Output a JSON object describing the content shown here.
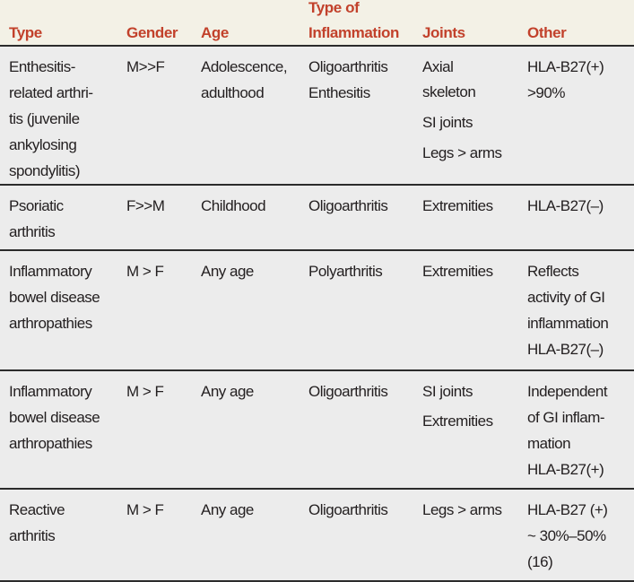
{
  "header": {
    "type": "Type",
    "gender": "Gender",
    "age": "Age",
    "inflammation_line1": "Type of",
    "inflammation_line2": "Inflammation",
    "joints": "Joints",
    "other": "Other"
  },
  "rows": [
    {
      "type": [
        "Enthesitis-",
        "related arthri-",
        "tis (juvenile",
        "ankylosing",
        "spondylitis)"
      ],
      "gender": [
        "M>>F"
      ],
      "age": [
        "Adolescence,",
        "adulthood"
      ],
      "inflammation": [
        "Oligoarthritis",
        "Enthesitis"
      ],
      "joints": [
        "Axial",
        "skeleton",
        "SI joints",
        "Legs > arms"
      ],
      "other": [
        "HLA-B27(+)",
        ">90%"
      ]
    },
    {
      "type": [
        "Psoriatic",
        "arthritis"
      ],
      "gender": [
        "F>>M"
      ],
      "age": [
        "Childhood"
      ],
      "inflammation": [
        "Oligoarthritis"
      ],
      "joints": [
        "Extremities"
      ],
      "other": [
        "HLA-B27(–)"
      ]
    },
    {
      "type": [
        "Inflammatory",
        "bowel disease",
        "arthropathies"
      ],
      "gender": [
        "M > F"
      ],
      "age": [
        "Any age"
      ],
      "inflammation": [
        "Polyarthritis"
      ],
      "joints": [
        "Extremities"
      ],
      "other": [
        "Reflects",
        "activity of GI",
        "inflammation",
        "HLA-B27(–)"
      ]
    },
    {
      "type": [
        "Inflammatory",
        "bowel disease",
        "arthropathies"
      ],
      "gender": [
        "M > F"
      ],
      "age": [
        "Any age"
      ],
      "inflammation": [
        "Oligoarthritis"
      ],
      "joints": [
        "SI joints",
        "Extremities"
      ],
      "other": [
        "Independent",
        "of GI inflam-",
        "mation",
        "HLA-B27(+)"
      ]
    },
    {
      "type": [
        "Reactive",
        "arthritis"
      ],
      "gender": [
        "M > F"
      ],
      "age": [
        "Any age"
      ],
      "inflammation": [
        "Oligoarthritis"
      ],
      "joints": [
        "Legs > arms"
      ],
      "other": [
        "HLA-B27 (+)",
        "~ 30%–50%",
        "(16)"
      ]
    }
  ]
}
